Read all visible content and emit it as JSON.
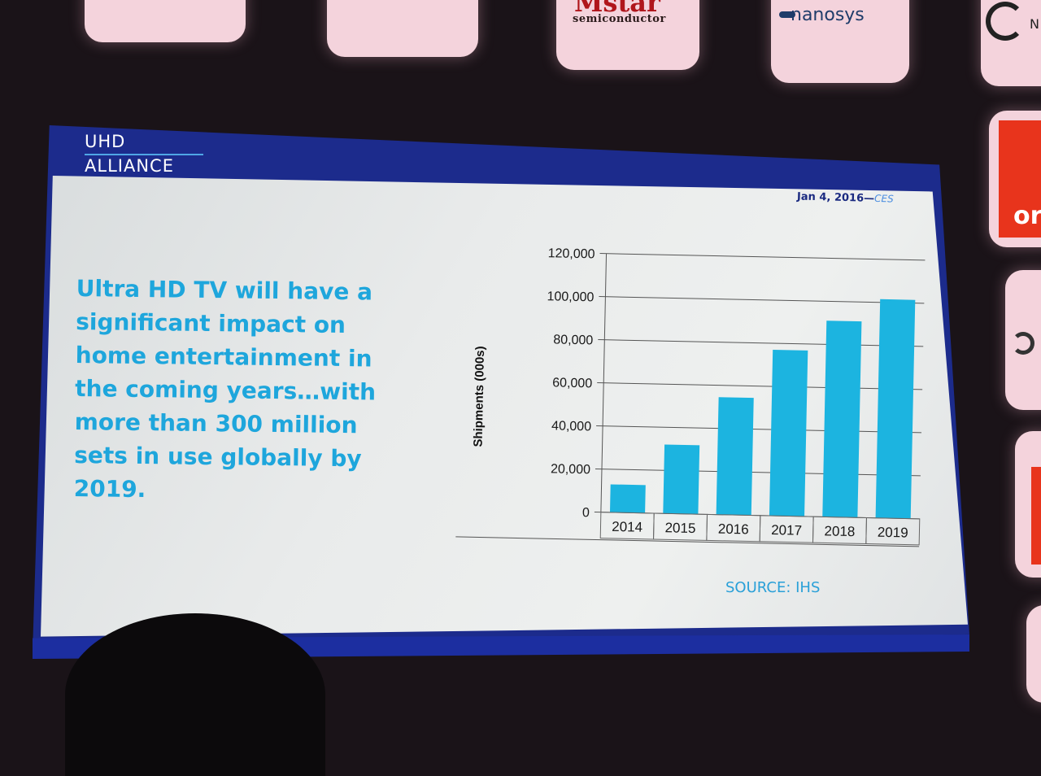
{
  "backdrop": {
    "tiles": {
      "mstar_big": "Mstar",
      "mstar_small": "semiconductor",
      "nanosys": "nanosys",
      "partial_n": "N",
      "partial_or": "or"
    }
  },
  "slide": {
    "logo_line1": "UHD",
    "logo_line2": "ALLIANCE",
    "date": "Jan 4, 2016—",
    "date_suffix": "CES",
    "headline": "Ultra HD TV will have a significant impact on home entertainment in the coming years…with more than 300 million sets in use globally by 2019.",
    "source": "SOURCE: IHS",
    "colors": {
      "headline": "#1ea6dc",
      "bar": "#1cb4e0",
      "band": "#1c2ea0"
    }
  },
  "chart_data": {
    "type": "bar",
    "categories": [
      "2014",
      "2015",
      "2016",
      "2017",
      "2018",
      "2019"
    ],
    "values": [
      13000,
      32000,
      54500,
      77000,
      91000,
      101500
    ],
    "ylabel": "Shipments (000s)",
    "xlabel": "",
    "ylim": [
      0,
      120000
    ],
    "yticks": [
      "0",
      "20,000",
      "40,000",
      "60,000",
      "80,000",
      "100,000",
      "120,000"
    ],
    "grid": true
  }
}
